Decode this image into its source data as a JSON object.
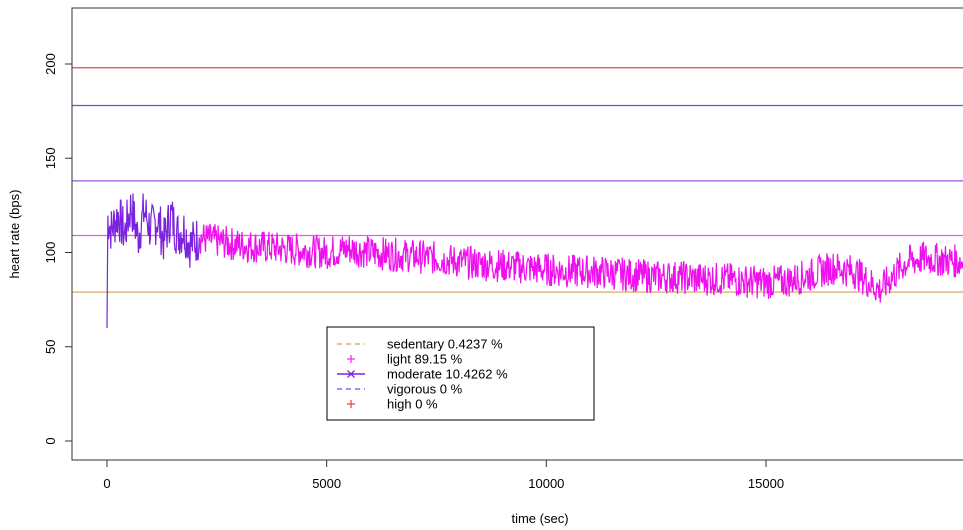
{
  "chart_data": {
    "type": "line",
    "title": "",
    "xlabel": "time (sec)",
    "ylabel": "heart rate (bps)",
    "xlim": [
      0,
      19500
    ],
    "ylim": [
      -5,
      228
    ],
    "x_ticks": [
      0,
      5000,
      10000,
      15000
    ],
    "y_ticks": [
      0,
      50,
      100,
      150,
      200
    ],
    "x_tick_labels": [
      "0",
      "5000",
      "10000",
      "15000"
    ],
    "y_tick_labels": [
      "0",
      "50",
      "100",
      "150",
      "200"
    ],
    "threshold_lines": [
      {
        "name": "high",
        "y": 198,
        "color": "#e34a4a"
      },
      {
        "name": "vigorous",
        "y": 178,
        "color": "#5a55ee"
      },
      {
        "name": "moderate",
        "y": 138,
        "color": "#9a55dd"
      },
      {
        "name": "light",
        "y": 109,
        "color": "#ee55ee"
      },
      {
        "name": "sedentary",
        "y": 79,
        "color": "#d4a04a"
      }
    ],
    "series": [
      {
        "name": "moderate",
        "color": "#7a22dd",
        "points": [
          [
            0,
            60
          ],
          [
            20,
            118
          ],
          [
            100,
            112
          ],
          [
            250,
            120
          ],
          [
            400,
            110
          ],
          [
            550,
            125
          ],
          [
            700,
            108
          ],
          [
            850,
            122
          ],
          [
            1000,
            112
          ],
          [
            1150,
            118
          ],
          [
            1300,
            106
          ],
          [
            1450,
            120
          ],
          [
            1600,
            110
          ],
          [
            1750,
            112
          ],
          [
            1900,
            104
          ],
          [
            2100,
            108
          ]
        ]
      },
      {
        "name": "light",
        "color": "#ee11ee",
        "points": [
          [
            2100,
            108
          ],
          [
            2500,
            106
          ],
          [
            3000,
            104
          ],
          [
            3500,
            103
          ],
          [
            4000,
            102
          ],
          [
            4500,
            101
          ],
          [
            5000,
            100
          ],
          [
            5500,
            102
          ],
          [
            6000,
            100
          ],
          [
            6500,
            99
          ],
          [
            7000,
            98
          ],
          [
            7500,
            97
          ],
          [
            8000,
            95
          ],
          [
            8500,
            94
          ],
          [
            9000,
            93
          ],
          [
            9500,
            92
          ],
          [
            10000,
            91
          ],
          [
            10500,
            90
          ],
          [
            11000,
            90
          ],
          [
            11500,
            89
          ],
          [
            12000,
            88
          ],
          [
            12500,
            87
          ],
          [
            13000,
            87
          ],
          [
            13500,
            86
          ],
          [
            14000,
            86
          ],
          [
            14500,
            85
          ],
          [
            15000,
            84
          ],
          [
            15500,
            85
          ],
          [
            16000,
            88
          ],
          [
            16500,
            92
          ],
          [
            17000,
            90
          ],
          [
            17300,
            85
          ],
          [
            17600,
            80
          ],
          [
            17900,
            88
          ],
          [
            18200,
            95
          ],
          [
            18600,
            97
          ],
          [
            19000,
            96
          ],
          [
            19500,
            95
          ]
        ]
      }
    ],
    "legend": {
      "position": "bottom-left",
      "entries": [
        {
          "label": "sedentary  0.4237 %",
          "color": "#d4a04a",
          "symbol": "dashed-line"
        },
        {
          "label": "light  89.15 %",
          "color": "#ee33ee",
          "symbol": "plus"
        },
        {
          "label": "moderate  10.4262 %",
          "color": "#7a22dd",
          "symbol": "line-cross"
        },
        {
          "label": "vigorous  0 %",
          "color": "#5a55ee",
          "symbol": "dashed-line"
        },
        {
          "label": "high  0 %",
          "color": "#e34a4a",
          "symbol": "plus"
        }
      ]
    }
  }
}
